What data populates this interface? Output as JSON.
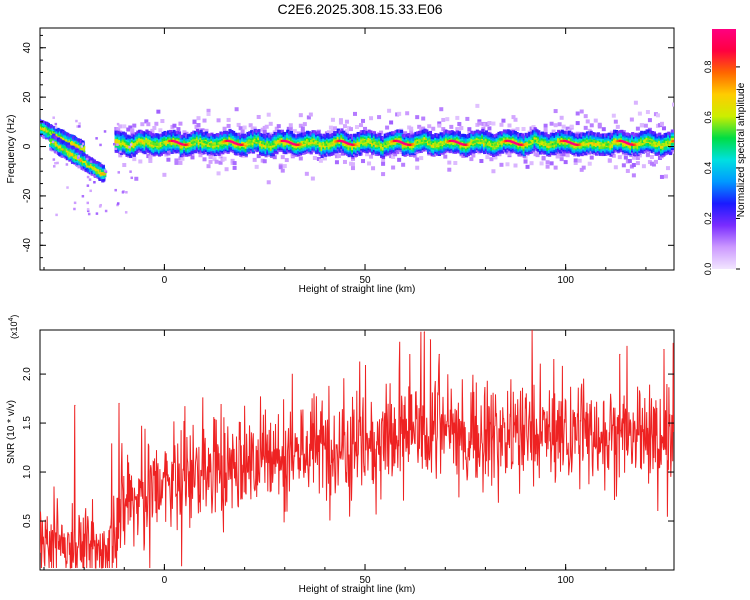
{
  "title": "C2E6.2025.308.15.33.E06",
  "chart_data": [
    {
      "type": "heatmap",
      "name": "spectrogram",
      "xlabel": "Height of straight line (km)",
      "ylabel": "Frequency (Hz)",
      "xlim": [
        -31,
        127
      ],
      "ylim": [
        -50,
        48
      ],
      "xticks": [
        0,
        50,
        100
      ],
      "yticks": [
        -40,
        -20,
        0,
        20,
        40
      ],
      "colorbar": {
        "label": "Normalized spectral amplitude",
        "range": [
          0,
          0.95
        ],
        "ticks": [
          "0.0",
          "0.2",
          "0.4",
          "0.6",
          "0.8"
        ],
        "tick_values": [
          0.0,
          0.2,
          0.4,
          0.6,
          0.8
        ],
        "colors": [
          "#f2e6ff",
          "#cc99ff",
          "#7a2cff",
          "#1a1aff",
          "#0099ff",
          "#00e0e0",
          "#00dd44",
          "#ccee00",
          "#ffcc00",
          "#ff6600",
          "#ff0040",
          "#ff0080"
        ]
      },
      "features": [
        {
          "name": "main-band",
          "x": [
            -12,
            127
          ],
          "center_hz": 1.5,
          "halfwidth_hz": 4
        },
        {
          "name": "upper-branch",
          "x": [
            -31,
            -20
          ],
          "start_hz": 8,
          "end_hz": -1
        },
        {
          "name": "lower-branch",
          "x": [
            -28,
            -15
          ],
          "start_hz": 2,
          "end_hz": -11
        }
      ]
    },
    {
      "type": "line",
      "name": "snr",
      "xlabel": "Height of straight line (km)",
      "ylabel": "SNR (10 * v/v)",
      "exponent_label": "(x10",
      "exponent_power": "4",
      "exponent_close": ")",
      "xlim": [
        -31,
        127
      ],
      "ylim": [
        0,
        2.45
      ],
      "xticks": [
        0,
        50,
        100
      ],
      "yticks": [
        "0.5",
        "1.0",
        "1.5",
        "2.0"
      ],
      "ytick_values": [
        0.5,
        1.0,
        1.5,
        2.0
      ],
      "line_color": "#ee2222",
      "trend_x": [
        -31,
        -25,
        -20,
        -14,
        -12,
        -10,
        -5,
        0,
        5,
        10,
        15,
        20,
        25,
        30,
        40,
        50,
        60,
        70,
        80,
        90,
        100,
        110,
        120,
        127
      ],
      "trend_y": [
        0.3,
        0.28,
        0.25,
        0.22,
        0.5,
        0.68,
        0.78,
        0.86,
        0.92,
        0.98,
        1.03,
        1.08,
        1.13,
        1.18,
        1.26,
        1.32,
        1.37,
        1.4,
        1.4,
        1.4,
        1.4,
        1.38,
        1.35,
        1.3
      ],
      "peaks": [
        {
          "x": -22.3,
          "y": 1.68
        },
        {
          "x": -11.3,
          "y": 1.7
        },
        {
          "x": 64.8,
          "y": 2.43
        },
        {
          "x": 66.3,
          "y": 2.35
        },
        {
          "x": 68.5,
          "y": 2.2
        },
        {
          "x": 113.5,
          "y": 2.2
        },
        {
          "x": 124.5,
          "y": 2.25
        }
      ]
    }
  ]
}
